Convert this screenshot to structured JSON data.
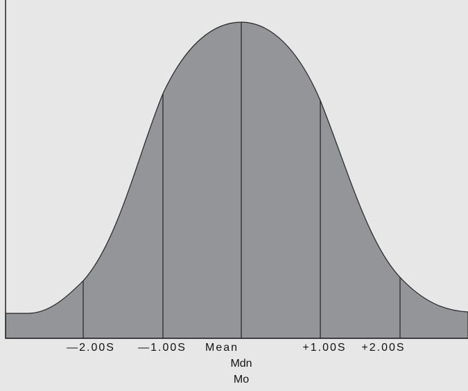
{
  "labels": [
    "—2.00S",
    "—1.00S",
    "Mean",
    "+1.00S",
    "+2.00S"
  ],
  "mean_labels": [
    "Mdn",
    "Mo"
  ]
}
